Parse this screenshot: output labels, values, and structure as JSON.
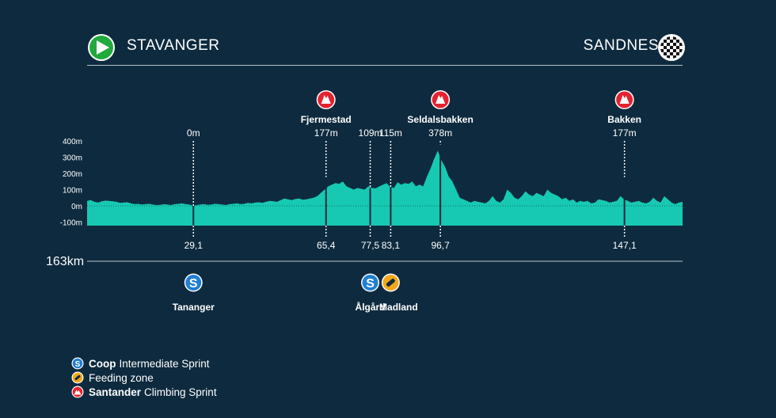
{
  "route": {
    "start": "STAVANGER",
    "finish": "SANDNES"
  },
  "colors": {
    "background": "#0e2a3e",
    "profile_fill": "#17c9b2",
    "start_flag": "#21a93c",
    "sprint_blue": "#1f7fd4",
    "feed_yellow": "#f2a71b",
    "climb_red": "#e52230"
  },
  "chart_data": {
    "type": "area",
    "title": "",
    "xlabel": "",
    "ylabel": "",
    "total_distance": "163km",
    "xlim": [
      0,
      163
    ],
    "ylim": [
      -100,
      400
    ],
    "y_ticks": [
      "400m",
      "300m",
      "200m",
      "100m",
      "0m",
      "-100m"
    ],
    "y_tick_values": [
      400,
      300,
      200,
      100,
      0,
      -100
    ],
    "elevation_profile": {
      "x": [
        0,
        1,
        2,
        3,
        4,
        5,
        6,
        7,
        8,
        9,
        10,
        11,
        12,
        13,
        14,
        15,
        16,
        17,
        18,
        19,
        20,
        21,
        22,
        23,
        24,
        25,
        26,
        27,
        28,
        29,
        30,
        31,
        32,
        33,
        34,
        35,
        36,
        37,
        38,
        39,
        40,
        41,
        42,
        43,
        44,
        45,
        46,
        47,
        48,
        49,
        50,
        51,
        52,
        53,
        54,
        55,
        56,
        57,
        58,
        59,
        60,
        61,
        62,
        63,
        64,
        65,
        66,
        67,
        68,
        69,
        70,
        71,
        72,
        73,
        74,
        75,
        76,
        77,
        78,
        79,
        80,
        81,
        82,
        83,
        84,
        85,
        86,
        87,
        88,
        89,
        90,
        91,
        92,
        93,
        94,
        95,
        96,
        97,
        98,
        99,
        100,
        101,
        102,
        103,
        104,
        105,
        106,
        107,
        108,
        109,
        110,
        111,
        112,
        113,
        114,
        115,
        116,
        117,
        118,
        119,
        120,
        121,
        122,
        123,
        124,
        125,
        126,
        127,
        128,
        129,
        130,
        131,
        132,
        133,
        134,
        135,
        136,
        137,
        138,
        139,
        140,
        141,
        142,
        143,
        144,
        145,
        146,
        147,
        148,
        149,
        150,
        151,
        152,
        153,
        154,
        155,
        156,
        157,
        158,
        159,
        160,
        161,
        162,
        163
      ],
      "y": [
        30,
        35,
        25,
        20,
        28,
        32,
        30,
        28,
        25,
        18,
        20,
        22,
        15,
        10,
        12,
        8,
        10,
        12,
        8,
        5,
        6,
        10,
        8,
        5,
        10,
        12,
        15,
        10,
        8,
        0,
        5,
        8,
        10,
        6,
        8,
        12,
        10,
        8,
        5,
        10,
        12,
        15,
        10,
        12,
        18,
        15,
        20,
        22,
        18,
        25,
        30,
        28,
        25,
        35,
        45,
        40,
        35,
        42,
        45,
        38,
        40,
        45,
        50,
        60,
        80,
        100,
        120,
        130,
        140,
        135,
        150,
        120,
        110,
        100,
        110,
        105,
        100,
        120,
        110,
        108,
        120,
        130,
        140,
        115,
        110,
        145,
        130,
        140,
        135,
        150,
        120,
        130,
        120,
        180,
        230,
        290,
        340,
        280,
        240,
        180,
        150,
        100,
        50,
        40,
        30,
        20,
        30,
        25,
        20,
        15,
        30,
        60,
        30,
        20,
        40,
        100,
        80,
        50,
        40,
        60,
        90,
        70,
        60,
        80,
        70,
        60,
        100,
        80,
        70,
        60,
        40,
        50,
        30,
        40,
        20,
        30,
        25,
        30,
        15,
        20,
        40,
        35,
        30,
        20,
        25,
        30,
        60,
        40,
        30,
        20,
        25,
        30,
        20,
        15,
        25,
        50,
        30,
        20,
        60,
        40,
        20,
        10,
        20,
        25
      ]
    },
    "markers": [
      {
        "km": "29,1",
        "alt": "0m",
        "x": 29.1,
        "elevation": 0
      },
      {
        "km": "65,4",
        "alt": "177m",
        "x": 65.4,
        "elevation": 177
      },
      {
        "km": "77,5",
        "alt": "109m",
        "x": 77.5,
        "elevation": 109
      },
      {
        "km": "83,1",
        "alt": "115m",
        "x": 83.1,
        "elevation": 115
      },
      {
        "km": "96,7",
        "alt": "378m",
        "x": 96.7,
        "elevation": 378
      },
      {
        "km": "147,1",
        "alt": "177m",
        "x": 147.1,
        "elevation": 177
      }
    ],
    "climbs": [
      {
        "name": "Fjermestad",
        "x": 65.4
      },
      {
        "name": "Seldalsbakken",
        "x": 96.7
      },
      {
        "name": "Bakken",
        "x": 147.1
      }
    ],
    "points": [
      {
        "name": "Tananger",
        "type": "sprint",
        "x": 29.1
      },
      {
        "name": "Ålgård",
        "type": "sprint",
        "x": 77.5
      },
      {
        "name": "Madland",
        "type": "feed",
        "x": 83.1
      }
    ]
  },
  "legend": [
    {
      "type": "sprint",
      "brand": "Coop",
      "text": "Intermediate Sprint"
    },
    {
      "type": "feed",
      "brand": "",
      "text": "Feeding zone"
    },
    {
      "type": "climb",
      "brand": "Santander",
      "text": "Climbing Sprint"
    }
  ]
}
